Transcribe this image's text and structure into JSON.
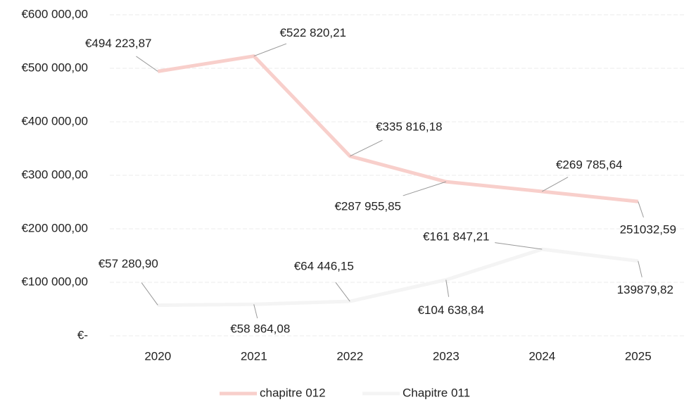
{
  "chart_data": {
    "type": "line",
    "categories": [
      "2020",
      "2021",
      "2022",
      "2023",
      "2024",
      "2025"
    ],
    "series": [
      {
        "name": "chapitre 012",
        "color": "#f8cfcb",
        "values": [
          494223.87,
          522820.21,
          335816.18,
          287955.85,
          269785.64,
          251032.59
        ],
        "value_labels": [
          "€494 223,87",
          "€522 820,21",
          "€335 816,18",
          "€287 955,85",
          "€269 785,64",
          "251032,59"
        ]
      },
      {
        "name": "Chapitre 011",
        "color": "#f4f4f4",
        "values": [
          57280.9,
          58864.08,
          64446.15,
          104638.84,
          161847.21,
          139879.82
        ],
        "value_labels": [
          "€57 280,90",
          "€58 864,08",
          "€64 446,15",
          "€104 638,84",
          "€161 847,21",
          "139879,82"
        ]
      }
    ],
    "ylim": [
      0,
      600000
    ],
    "yticks": [
      {
        "value": 0,
        "label": "€-"
      },
      {
        "value": 100000,
        "label": "€100 000,00"
      },
      {
        "value": 200000,
        "label": "€200 000,00"
      },
      {
        "value": 300000,
        "label": "€300 000,00"
      },
      {
        "value": 400000,
        "label": "€400 000,00"
      },
      {
        "value": 500000,
        "label": "€500 000,00"
      },
      {
        "value": 600000,
        "label": "€600 000,00"
      }
    ],
    "grid": true
  }
}
